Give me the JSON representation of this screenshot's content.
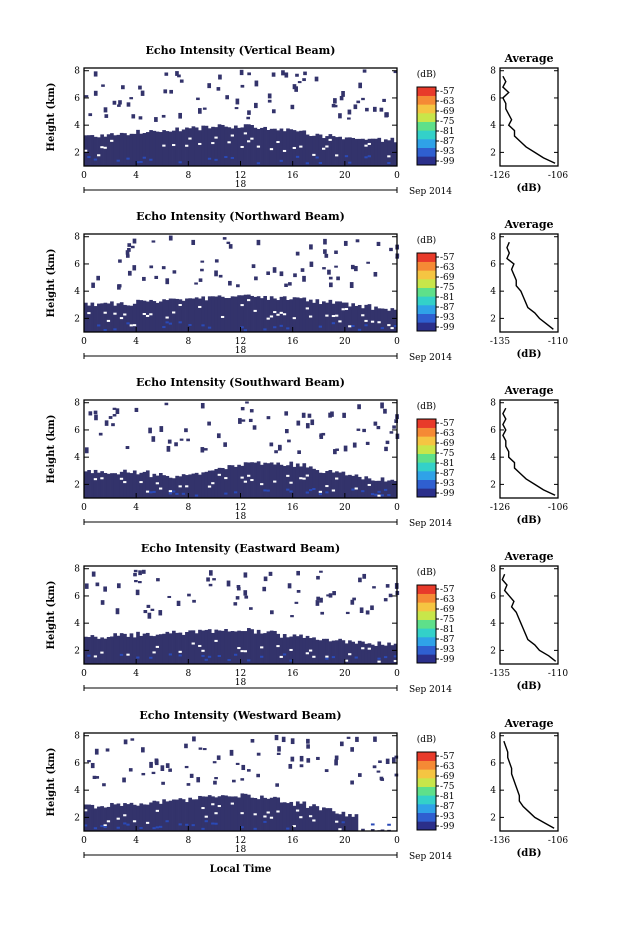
{
  "colors": {
    "echo_fill": "#33336b",
    "echo_speck": "#2a4ab8",
    "colorbar": [
      "#2b2f8a",
      "#2f5fd0",
      "#2fa2e8",
      "#33d1c9",
      "#5ee08a",
      "#c8e64a",
      "#f5c542",
      "#f58a35",
      "#e83a2a"
    ]
  },
  "chart_data": [
    {
      "type": "heatmap",
      "title": "Echo Intensity (Vertical Beam)",
      "ylabel": "Height (km)",
      "xlabel": "",
      "x_ticks": [
        "0",
        "4",
        "8",
        "12",
        "16",
        "20",
        "0"
      ],
      "x_range_hours": [
        0,
        24
      ],
      "date_label_mid": "18",
      "date_label_end": "Sep 2014",
      "y_ticks": [
        "2",
        "4",
        "6",
        "8"
      ],
      "y_range_km": [
        1,
        8.2
      ],
      "layer_top_km": [
        3.2,
        3.2,
        3.3,
        3.4,
        3.5,
        3.6,
        3.6,
        3.7,
        3.8,
        3.9,
        3.9,
        3.9,
        3.9,
        3.8,
        3.7,
        3.6,
        3.5,
        3.3,
        3.2,
        3.1,
        3.0,
        3.0,
        2.9,
        2.9
      ],
      "colorbar": {
        "unit": "(dB)",
        "ticks": [
          "-57",
          "-63",
          "-69",
          "-75",
          "-81",
          "-87",
          "-93",
          "-99"
        ]
      },
      "profile": {
        "title": "Average",
        "xlabel": "(dB)",
        "x_ticks": [
          "-126",
          "-106"
        ],
        "x_range": [
          -126,
          -106
        ],
        "y_ticks": [
          "2",
          "4",
          "6",
          "8"
        ],
        "y_range_km": [
          1,
          8.2
        ],
        "heights_km": [
          1.2,
          1.6,
          2.0,
          2.4,
          2.8,
          3.2,
          3.6,
          4.0,
          4.4,
          4.8,
          5.2,
          5.6,
          6.0,
          6.4,
          6.8,
          7.2,
          7.6
        ],
        "values_db": [
          -107,
          -111,
          -114,
          -117,
          -119,
          -121,
          -121,
          -123,
          -122,
          -123,
          -124,
          -124,
          -125,
          -123,
          -125,
          -124,
          -125
        ]
      }
    },
    {
      "type": "heatmap",
      "title": "Echo Intensity (Northward Beam)",
      "ylabel": "Height (km)",
      "xlabel": "",
      "x_ticks": [
        "0",
        "4",
        "8",
        "12",
        "16",
        "20",
        "0"
      ],
      "x_range_hours": [
        0,
        24
      ],
      "date_label_mid": "18",
      "date_label_end": "Sep 2014",
      "y_ticks": [
        "2",
        "4",
        "6",
        "8"
      ],
      "y_range_km": [
        1,
        8.2
      ],
      "layer_top_km": [
        3.0,
        3.0,
        3.1,
        3.1,
        3.2,
        3.2,
        3.3,
        3.4,
        3.4,
        3.5,
        3.6,
        3.6,
        3.6,
        3.6,
        3.5,
        3.5,
        3.4,
        3.3,
        3.2,
        3.1,
        3.0,
        2.9,
        2.8,
        2.7
      ],
      "colorbar": {
        "unit": "(dB)",
        "ticks": [
          "-57",
          "-63",
          "-69",
          "-75",
          "-81",
          "-87",
          "-93",
          "-99"
        ]
      },
      "profile": {
        "title": "Average",
        "xlabel": "(dB)",
        "x_ticks": [
          "-135",
          "-110"
        ],
        "x_range": [
          -135,
          -110
        ],
        "y_ticks": [
          "2",
          "4",
          "6",
          "8"
        ],
        "y_range_km": [
          1,
          8.2
        ],
        "heights_km": [
          1.2,
          1.6,
          2.0,
          2.4,
          2.8,
          3.2,
          3.6,
          4.0,
          4.4,
          4.8,
          5.2,
          5.6,
          6.0,
          6.4,
          6.8,
          7.2,
          7.6
        ],
        "values_db": [
          -112,
          -115,
          -118,
          -120,
          -123,
          -124,
          -125,
          -126,
          -128,
          -128,
          -129,
          -130,
          -129,
          -132,
          -131,
          -132,
          -131
        ]
      }
    },
    {
      "type": "heatmap",
      "title": "Echo Intensity (Southward Beam)",
      "ylabel": "Height (km)",
      "xlabel": "",
      "x_ticks": [
        "0",
        "4",
        "8",
        "12",
        "16",
        "20",
        "0"
      ],
      "x_range_hours": [
        0,
        24
      ],
      "date_label_mid": "18",
      "date_label_end": "Sep 2014",
      "y_ticks": [
        "2",
        "4",
        "6",
        "8"
      ],
      "y_range_km": [
        1,
        8.2
      ],
      "layer_top_km": [
        2.9,
        2.9,
        2.9,
        3.0,
        2.9,
        2.7,
        2.6,
        2.6,
        2.7,
        2.9,
        3.1,
        3.3,
        3.5,
        3.6,
        3.6,
        3.5,
        3.4,
        3.2,
        3.0,
        2.8,
        2.6,
        2.5,
        2.4,
        2.3
      ],
      "colorbar": {
        "unit": "(dB)",
        "ticks": [
          "-57",
          "-63",
          "-69",
          "-75",
          "-81",
          "-87",
          "-93",
          "-99"
        ]
      },
      "profile": {
        "title": "Average",
        "xlabel": "(dB)",
        "x_ticks": [
          "-126",
          "-106"
        ],
        "x_range": [
          -126,
          -106
        ],
        "y_ticks": [
          "2",
          "4",
          "6",
          "8"
        ],
        "y_range_km": [
          1,
          8.2
        ],
        "heights_km": [
          1.2,
          1.6,
          2.0,
          2.4,
          2.8,
          3.2,
          3.6,
          4.0,
          4.4,
          4.8,
          5.2,
          5.6,
          6.0,
          6.4,
          6.8,
          7.2,
          7.6
        ],
        "values_db": [
          -107,
          -111,
          -114,
          -117,
          -119,
          -121,
          -121,
          -123,
          -123,
          -124,
          -124,
          -125,
          -124,
          -125,
          -124,
          -125,
          -124
        ]
      }
    },
    {
      "type": "heatmap",
      "title": "Echo Intensity (Eastward Beam)",
      "ylabel": "Height (km)",
      "xlabel": "",
      "x_ticks": [
        "0",
        "4",
        "8",
        "12",
        "16",
        "20",
        "0"
      ],
      "x_range_hours": [
        0,
        24
      ],
      "date_label_mid": "18",
      "date_label_end": "Sep 2014",
      "y_ticks": [
        "2",
        "4",
        "6",
        "8"
      ],
      "y_range_km": [
        1,
        8.2
      ],
      "layer_top_km": [
        3.0,
        3.0,
        3.1,
        3.1,
        3.2,
        3.2,
        3.3,
        3.3,
        3.4,
        3.4,
        3.5,
        3.5,
        3.5,
        3.4,
        3.3,
        3.1,
        3.0,
        2.9,
        2.8,
        2.7,
        2.6,
        2.6,
        2.5,
        2.5
      ],
      "colorbar": {
        "unit": "(dB)",
        "ticks": [
          "-57",
          "-63",
          "-69",
          "-75",
          "-81",
          "-87",
          "-93",
          "-99"
        ]
      },
      "profile": {
        "title": "Average",
        "xlabel": "(dB)",
        "x_ticks": [
          "-135",
          "-110"
        ],
        "x_range": [
          -135,
          -110
        ],
        "y_ticks": [
          "2",
          "4",
          "6",
          "8"
        ],
        "y_range_km": [
          1,
          8.2
        ],
        "heights_km": [
          1.2,
          1.6,
          2.0,
          2.4,
          2.8,
          3.2,
          3.6,
          4.0,
          4.4,
          4.8,
          5.2,
          5.6,
          6.0,
          6.4,
          6.8,
          7.2,
          7.6
        ],
        "values_db": [
          -111,
          -114,
          -118,
          -120,
          -123,
          -124,
          -125,
          -126,
          -127,
          -128,
          -130,
          -129,
          -131,
          -133,
          -132,
          -134,
          -133
        ]
      }
    },
    {
      "type": "heatmap",
      "title": "Echo Intensity (Westward Beam)",
      "ylabel": "Height (km)",
      "xlabel": "Local Time",
      "x_ticks": [
        "0",
        "4",
        "8",
        "12",
        "16",
        "20",
        "0"
      ],
      "x_range_hours": [
        0,
        24
      ],
      "date_label_mid": "18",
      "date_label_end": "Sep 2014",
      "y_ticks": [
        "2",
        "4",
        "6",
        "8"
      ],
      "y_range_km": [
        1,
        8.2
      ],
      "layer_top_km": [
        2.8,
        2.8,
        2.9,
        2.9,
        3.0,
        3.1,
        3.2,
        3.3,
        3.4,
        3.5,
        3.6,
        3.6,
        3.6,
        3.5,
        3.4,
        3.2,
        3.0,
        2.8,
        2.6,
        2.4,
        2.2,
        1.0,
        1.0,
        1.0
      ],
      "colorbar": {
        "unit": "(dB)",
        "ticks": [
          "-57",
          "-63",
          "-69",
          "-75",
          "-81",
          "-87",
          "-93",
          "-99"
        ]
      },
      "profile": {
        "title": "Average",
        "xlabel": "(dB)",
        "x_ticks": [
          "-136",
          "-106"
        ],
        "x_range": [
          -136,
          -106
        ],
        "y_ticks": [
          "2",
          "4",
          "6",
          "8"
        ],
        "y_range_km": [
          1,
          8.2
        ],
        "heights_km": [
          1.2,
          1.6,
          2.0,
          2.4,
          2.8,
          3.2,
          3.6,
          4.0,
          4.4,
          4.8,
          5.2,
          5.6,
          6.0,
          6.4,
          6.8,
          7.2,
          7.6
        ],
        "values_db": [
          -108,
          -113,
          -118,
          -121,
          -124,
          -126,
          -126,
          -127,
          -128,
          -129,
          -130,
          -130,
          -131,
          -132,
          -132,
          -133,
          -134
        ]
      }
    }
  ]
}
